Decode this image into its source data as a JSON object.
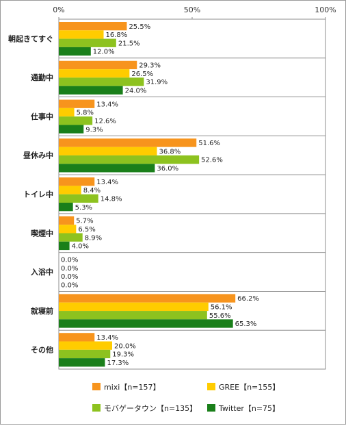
{
  "chart_data": {
    "type": "bar",
    "orientation": "horizontal",
    "categories": [
      "朝起きてすぐ",
      "通勤中",
      "仕事中",
      "昼休み中",
      "トイレ中",
      "喫煙中",
      "入浴中",
      "就寝前",
      "その他"
    ],
    "series": [
      {
        "name": "mixi【n=157】",
        "color": "#f7941d",
        "values": [
          25.5,
          29.3,
          13.4,
          51.6,
          13.4,
          5.7,
          0.0,
          66.2,
          13.4
        ]
      },
      {
        "name": "GREE【n=155】",
        "color": "#ffcc00",
        "values": [
          16.8,
          26.5,
          5.8,
          36.8,
          8.4,
          6.5,
          0.0,
          56.1,
          20.0
        ]
      },
      {
        "name": "モバゲータウン【n=135】",
        "color": "#8dc21f",
        "values": [
          21.5,
          31.9,
          12.6,
          52.6,
          14.8,
          8.9,
          0.0,
          55.6,
          19.3
        ]
      },
      {
        "name": "Twitter【n=75】",
        "color": "#1a7f1a",
        "values": [
          12.0,
          24.0,
          9.3,
          36.0,
          5.3,
          4.0,
          0.0,
          65.3,
          17.3
        ]
      }
    ],
    "xlim": [
      0,
      100
    ],
    "x_tick_labels": [
      "0%",
      "50%",
      "100%"
    ],
    "value_suffix": "%",
    "grid": false,
    "legend_position": "bottom"
  }
}
